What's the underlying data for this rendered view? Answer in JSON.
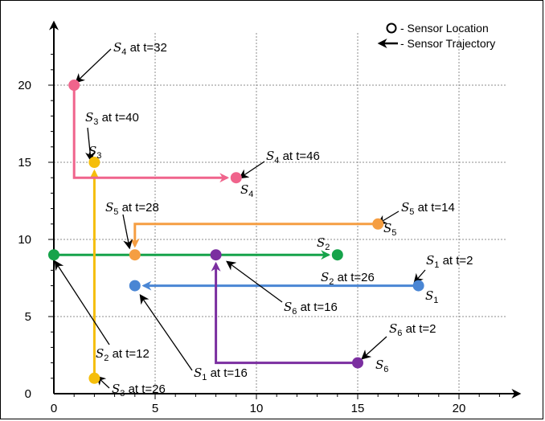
{
  "chart_data": {
    "type": "scatter",
    "title": "",
    "xlabel": "",
    "ylabel": "",
    "xlim": [
      0,
      22.5
    ],
    "ylim": [
      0,
      23.5
    ],
    "grid": true,
    "x_ticks": [
      0,
      5,
      10,
      15,
      20
    ],
    "y_ticks": [
      0,
      5,
      10,
      15,
      20
    ],
    "legend": {
      "position": "top-right",
      "items": [
        {
          "name": "location",
          "label": "- Sensor Location"
        },
        {
          "name": "trajectory",
          "label": "- Sensor Trajectory"
        }
      ]
    },
    "sensors": [
      {
        "id": "1",
        "color": "#4a86d4",
        "start": {
          "x": 18,
          "y": 7,
          "t": 2
        },
        "end": {
          "x": 4,
          "y": 7,
          "t": 16
        },
        "path": [
          [
            18,
            7
          ],
          [
            4,
            7
          ]
        ]
      },
      {
        "id": "2",
        "color": "#16a34a",
        "start": {
          "x": 0,
          "y": 9,
          "t": 12
        },
        "end": {
          "x": 14,
          "y": 9,
          "t": 26
        },
        "path": [
          [
            0,
            9
          ],
          [
            14,
            9
          ]
        ]
      },
      {
        "id": "3",
        "color": "#f5be0b",
        "start": {
          "x": 2,
          "y": 1,
          "t": 26
        },
        "end": {
          "x": 2,
          "y": 15,
          "t": 40
        },
        "path": [
          [
            2,
            1
          ],
          [
            2,
            15
          ]
        ]
      },
      {
        "id": "4",
        "color": "#f0648c",
        "start": {
          "x": 1,
          "y": 20,
          "t": 32
        },
        "end": {
          "x": 9,
          "y": 14,
          "t": 46
        },
        "path": [
          [
            1,
            20
          ],
          [
            1,
            14
          ],
          [
            9,
            14
          ]
        ]
      },
      {
        "id": "5",
        "color": "#f59e42",
        "start": {
          "x": 16,
          "y": 11,
          "t": 14
        },
        "end": {
          "x": 4,
          "y": 9,
          "t": 28
        },
        "path": [
          [
            16,
            11
          ],
          [
            4,
            11
          ],
          [
            4,
            9
          ]
        ]
      },
      {
        "id": "6",
        "color": "#7b2fa0",
        "start": {
          "x": 15,
          "y": 2,
          "t": 2
        },
        "end": {
          "x": 8,
          "y": 9,
          "t": 16
        },
        "path": [
          [
            15,
            2
          ],
          [
            8,
            2
          ],
          [
            8,
            9
          ]
        ]
      }
    ],
    "annotations": [
      {
        "sensor": "1",
        "prefix": "S",
        "sub": "1",
        "text": " at t=2"
      },
      {
        "sensor": "1",
        "prefix": "S",
        "sub": "1",
        "text": " at t=16"
      },
      {
        "sensor": "2",
        "prefix": "S",
        "sub": "2",
        "text": " at t=12"
      },
      {
        "sensor": "2",
        "prefix": "S",
        "sub": "2",
        "text": " at t=26"
      },
      {
        "sensor": "3",
        "prefix": "S",
        "sub": "3",
        "text": " at t=26"
      },
      {
        "sensor": "3",
        "prefix": "S",
        "sub": "3",
        "text": " at t=40"
      },
      {
        "sensor": "4",
        "prefix": "S",
        "sub": "4",
        "text": " at t=32"
      },
      {
        "sensor": "4",
        "prefix": "S",
        "sub": "4",
        "text": " at t=46"
      },
      {
        "sensor": "5",
        "prefix": "S",
        "sub": "5",
        "text": " at t=14"
      },
      {
        "sensor": "5",
        "prefix": "S",
        "sub": "5",
        "text": " at t=28"
      },
      {
        "sensor": "6",
        "prefix": "S",
        "sub": "6",
        "text": " at t=2"
      },
      {
        "sensor": "6",
        "prefix": "S",
        "sub": "6",
        "text": " at t=16"
      }
    ],
    "point_labels": [
      {
        "sensor": "1",
        "prefix": "S",
        "sub": "1"
      },
      {
        "sensor": "2",
        "prefix": "S",
        "sub": "2"
      },
      {
        "sensor": "3",
        "prefix": "S",
        "sub": "3"
      },
      {
        "sensor": "4",
        "prefix": "S",
        "sub": "4"
      },
      {
        "sensor": "5",
        "prefix": "S",
        "sub": "5"
      },
      {
        "sensor": "6",
        "prefix": "S",
        "sub": "6"
      }
    ]
  }
}
